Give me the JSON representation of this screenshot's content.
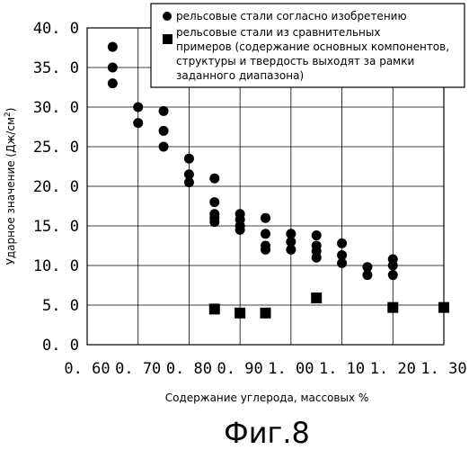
{
  "chart_data": {
    "type": "scatter",
    "xlabel": "Содержание углерода, массовых %",
    "ylabel": "Ударное значение (Дж/см",
    "ylabel_sup": "2",
    "ylabel_end": ")",
    "xlim": [
      0.6,
      1.3
    ],
    "ylim": [
      0,
      40
    ],
    "x_ticks": [
      "0. 60",
      "0. 70",
      "0. 80",
      "0. 90",
      "1. 00",
      "1. 10",
      "1. 20",
      "1. 30"
    ],
    "y_ticks": [
      "0. 0",
      "5. 0",
      "10. 0",
      "15. 0",
      "20. 0",
      "25. 0",
      "30. 0",
      "35. 0",
      "40. 0"
    ],
    "grid": true,
    "legend_position": "top-right",
    "series": [
      {
        "name": "рельсовые стали согласно изобретению",
        "marker": "circle",
        "color": "#000000",
        "points": [
          [
            0.65,
            37.6
          ],
          [
            0.65,
            35.0
          ],
          [
            0.65,
            33.0
          ],
          [
            0.7,
            30.0
          ],
          [
            0.7,
            28.0
          ],
          [
            0.75,
            29.5
          ],
          [
            0.75,
            27.0
          ],
          [
            0.75,
            25.0
          ],
          [
            0.8,
            23.5
          ],
          [
            0.8,
            21.5
          ],
          [
            0.8,
            20.5
          ],
          [
            0.85,
            21.0
          ],
          [
            0.85,
            18.0
          ],
          [
            0.85,
            16.5
          ],
          [
            0.85,
            16.0
          ],
          [
            0.85,
            15.5
          ],
          [
            0.9,
            16.5
          ],
          [
            0.9,
            15.8
          ],
          [
            0.9,
            15.0
          ],
          [
            0.9,
            14.5
          ],
          [
            0.95,
            16.0
          ],
          [
            0.95,
            14.0
          ],
          [
            0.95,
            12.5
          ],
          [
            0.95,
            12.0
          ],
          [
            1.0,
            14.0
          ],
          [
            1.0,
            13.0
          ],
          [
            1.0,
            12.0
          ],
          [
            1.05,
            13.8
          ],
          [
            1.05,
            12.5
          ],
          [
            1.05,
            11.8
          ],
          [
            1.05,
            11.0
          ],
          [
            1.1,
            12.8
          ],
          [
            1.1,
            11.3
          ],
          [
            1.1,
            10.3
          ],
          [
            1.15,
            9.8
          ],
          [
            1.15,
            8.8
          ],
          [
            1.2,
            10.8
          ],
          [
            1.2,
            10.0
          ],
          [
            1.2,
            8.8
          ]
        ]
      },
      {
        "name": "рельсовые стали из сравнительных примеров (содержание основных компонентов, структуры и твердость выходят за рамки заданного диапазона)",
        "legend_lines": [
          "рельсовые стали из сравнительных",
          "примеров (содержание основных компонентов,",
          "структуры и твердость выходят за рамки",
          "заданного диапазона)"
        ],
        "marker": "square",
        "color": "#000000",
        "points": [
          [
            0.85,
            4.5
          ],
          [
            0.9,
            4.0
          ],
          [
            0.95,
            4.0
          ],
          [
            1.05,
            5.9
          ],
          [
            1.2,
            4.7
          ],
          [
            1.3,
            4.7
          ]
        ]
      }
    ]
  },
  "caption": "Фиг.8"
}
